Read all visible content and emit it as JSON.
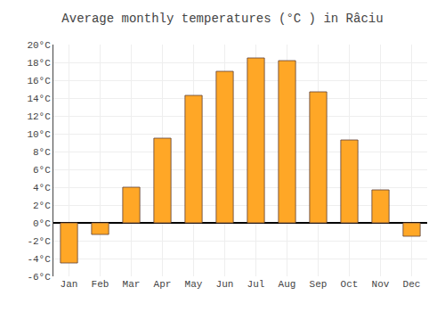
{
  "chart_data": {
    "type": "bar",
    "title": "Average monthly temperatures (°C ) in Râciu",
    "categories": [
      "Jan",
      "Feb",
      "Mar",
      "Apr",
      "May",
      "Jun",
      "Jul",
      "Aug",
      "Sep",
      "Oct",
      "Nov",
      "Dec"
    ],
    "values": [
      -4.5,
      -1.3,
      4.0,
      9.5,
      14.3,
      17.0,
      18.5,
      18.2,
      14.7,
      9.3,
      3.7,
      -1.5
    ],
    "color": "#FFA726",
    "ylim": [
      -6,
      20
    ],
    "yticks": [
      {
        "value": -6,
        "label": "-6°C"
      },
      {
        "value": -4,
        "label": "-4°C"
      },
      {
        "value": -2,
        "label": "-2°C"
      },
      {
        "value": 0,
        "label": "0°C"
      },
      {
        "value": 2,
        "label": "2°C"
      },
      {
        "value": 4,
        "label": "4°C"
      },
      {
        "value": 6,
        "label": "6°C"
      },
      {
        "value": 8,
        "label": "8°C"
      },
      {
        "value": 10,
        "label": "10°C"
      },
      {
        "value": 12,
        "label": "12°C"
      },
      {
        "value": 14,
        "label": "14°C"
      },
      {
        "value": 16,
        "label": "16°C"
      },
      {
        "value": 18,
        "label": "18°C"
      },
      {
        "value": 20,
        "label": "20°C"
      }
    ],
    "grid": true
  }
}
